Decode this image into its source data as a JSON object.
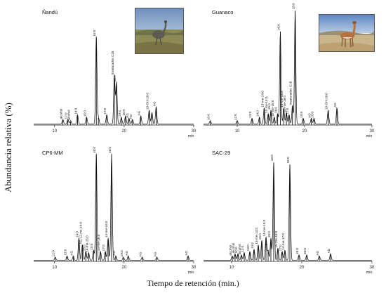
{
  "figure": {
    "ylabel": "Abundancia relativa (%)",
    "xlabel": "Tiempo de retención (min.)"
  },
  "chart_data": [
    {
      "type": "line",
      "title": "Ñandú",
      "xlabel": "min",
      "xlim": [
        7,
        30
      ],
      "ylim": [
        0,
        100
      ],
      "xticks": [
        10,
        20,
        30
      ],
      "photo": "rhea-photo",
      "peaks": [
        {
          "x": 11.2,
          "y": 4,
          "label": "alcohol"
        },
        {
          "x": 11.9,
          "y": 4,
          "label": "12:0"
        },
        {
          "x": 12.3,
          "y": 3,
          "label": "alcohol"
        },
        {
          "x": 13.3,
          "y": 8,
          "label": "14:0"
        },
        {
          "x": 14.6,
          "y": 6,
          "label": "15:0"
        },
        {
          "x": 16.0,
          "y": 75,
          "label": "16:0"
        },
        {
          "x": 16.3,
          "y": 6,
          "label": ""
        },
        {
          "x": 17.5,
          "y": 8,
          "label": "17:0"
        },
        {
          "x": 18.6,
          "y": 42,
          "label": "Insaturados C18"
        },
        {
          "x": 18.9,
          "y": 36,
          "label": "18:0"
        },
        {
          "x": 19.6,
          "y": 6,
          "label": "19:0"
        },
        {
          "x": 20.2,
          "y": 7,
          "label": "20:0"
        },
        {
          "x": 20.7,
          "y": 5,
          "label": "AG"
        },
        {
          "x": 21.2,
          "y": 4,
          "label": "AG"
        },
        {
          "x": 22.4,
          "y": 7,
          "label": "AG"
        },
        {
          "x": 23.6,
          "y": 12,
          "label": "10-OH-18:0"
        },
        {
          "x": 24.0,
          "y": 10,
          "label": ""
        },
        {
          "x": 24.6,
          "y": 15,
          "label": "AG"
        }
      ]
    },
    {
      "type": "line",
      "title": "Guanaco",
      "xlabel": "min",
      "xlim": [
        5,
        30
      ],
      "ylim": [
        0,
        100
      ],
      "xticks": [
        10,
        20,
        30
      ],
      "photo": "guanaco-photo",
      "peaks": [
        {
          "x": 6.0,
          "y": 3,
          "label": "10:0"
        },
        {
          "x": 10.0,
          "y": 3,
          "label": "12:0"
        },
        {
          "x": 12.2,
          "y": 5,
          "label": "13:0"
        },
        {
          "x": 13.3,
          "y": 6,
          "label": "14:0"
        },
        {
          "x": 14.0,
          "y": 14,
          "label": "13-me-14:0"
        },
        {
          "x": 14.6,
          "y": 9,
          "label": "14-me-14:0"
        },
        {
          "x": 15.0,
          "y": 12,
          "label": "15:0"
        },
        {
          "x": 15.5,
          "y": 6,
          "label": "15-me-15:0"
        },
        {
          "x": 16.0,
          "y": 9,
          "label": "16:0"
        },
        {
          "x": 16.4,
          "y": 80,
          "label": "16:0"
        },
        {
          "x": 16.9,
          "y": 14,
          "label": "15-me-16:0"
        },
        {
          "x": 17.3,
          "y": 10,
          "label": "14-me-16:0"
        },
        {
          "x": 17.7,
          "y": 8,
          "label": "17:0"
        },
        {
          "x": 18.2,
          "y": 16,
          "label": "Insaturados C18"
        },
        {
          "x": 18.6,
          "y": 98,
          "label": "18:0"
        },
        {
          "x": 19.8,
          "y": 5,
          "label": "19:0"
        },
        {
          "x": 21.0,
          "y": 5,
          "label": "AG"
        },
        {
          "x": 21.4,
          "y": 5,
          "label": "20:0"
        },
        {
          "x": 23.5,
          "y": 12,
          "label": "10-OH-18:0"
        },
        {
          "x": 24.8,
          "y": 14,
          "label": "AG"
        }
      ]
    },
    {
      "type": "line",
      "title": "CP6-MM",
      "xlabel": "min",
      "xlim": [
        7,
        30
      ],
      "ylim": [
        0,
        100
      ],
      "xticks": [
        10,
        20,
        30
      ],
      "peaks": [
        {
          "x": 10.1,
          "y": 3,
          "label": "12:0"
        },
        {
          "x": 11.8,
          "y": 4,
          "label": "13:0"
        },
        {
          "x": 12.7,
          "y": 4,
          "label": "AG"
        },
        {
          "x": 13.5,
          "y": 20,
          "label": "14:0"
        },
        {
          "x": 14.0,
          "y": 14,
          "label": "AG-12-me-14:0"
        },
        {
          "x": 14.5,
          "y": 8,
          "label": "15:0"
        },
        {
          "x": 14.9,
          "y": 7,
          "label": "14-me-15:0"
        },
        {
          "x": 15.6,
          "y": 9,
          "label": "15:0"
        },
        {
          "x": 16.0,
          "y": 95,
          "label": "16:0"
        },
        {
          "x": 16.6,
          "y": 8,
          "label": "15-me-16:0"
        },
        {
          "x": 17.3,
          "y": 8,
          "label": "17:0"
        },
        {
          "x": 17.7,
          "y": 20,
          "label": "14-me-16:0"
        },
        {
          "x": 18.2,
          "y": 95,
          "label": "18:0"
        },
        {
          "x": 18.8,
          "y": 4,
          "label": "AG"
        },
        {
          "x": 19.9,
          "y": 3,
          "label": "19:0"
        },
        {
          "x": 20.6,
          "y": 4,
          "label": "AG"
        },
        {
          "x": 22.6,
          "y": 3,
          "label": "AG"
        },
        {
          "x": 24.7,
          "y": 3,
          "label": "AG"
        },
        {
          "x": 29.2,
          "y": 4,
          "label": "AG"
        }
      ]
    },
    {
      "type": "line",
      "title": "SAC-29",
      "xlabel": "min",
      "xlim": [
        6,
        30
      ],
      "ylim": [
        0,
        100
      ],
      "xticks": [
        10,
        20,
        30
      ],
      "peaks": [
        {
          "x": 10.1,
          "y": 4,
          "label": "alcohol"
        },
        {
          "x": 10.5,
          "y": 6,
          "label": "alcohol"
        },
        {
          "x": 10.9,
          "y": 6,
          "label": "10:0"
        },
        {
          "x": 11.4,
          "y": 5,
          "label": "alcohol"
        },
        {
          "x": 11.8,
          "y": 7,
          "label": "12:0"
        },
        {
          "x": 12.6,
          "y": 8,
          "label": "13:0"
        },
        {
          "x": 13.2,
          "y": 10,
          "label": "14:0"
        },
        {
          "x": 13.8,
          "y": 14,
          "label": "13-me-14:0"
        },
        {
          "x": 14.3,
          "y": 18,
          "label": "15:0"
        },
        {
          "x": 14.9,
          "y": 21,
          "label": "14-me-15:0"
        },
        {
          "x": 15.2,
          "y": 9,
          "label": "15:0"
        },
        {
          "x": 15.6,
          "y": 20,
          "label": "16:0"
        },
        {
          "x": 16.0,
          "y": 88,
          "label": "16:0"
        },
        {
          "x": 16.6,
          "y": 11,
          "label": "15-me-16:0"
        },
        {
          "x": 17.2,
          "y": 8,
          "label": "17:0"
        },
        {
          "x": 17.6,
          "y": 9,
          "label": "14-me-17:0"
        },
        {
          "x": 18.3,
          "y": 86,
          "label": "18:0"
        },
        {
          "x": 19.6,
          "y": 5,
          "label": "19:0"
        },
        {
          "x": 20.7,
          "y": 5,
          "label": "20:0"
        },
        {
          "x": 22.5,
          "y": 4,
          "label": "AG"
        },
        {
          "x": 24.1,
          "y": 6,
          "label": "AG"
        }
      ]
    }
  ]
}
